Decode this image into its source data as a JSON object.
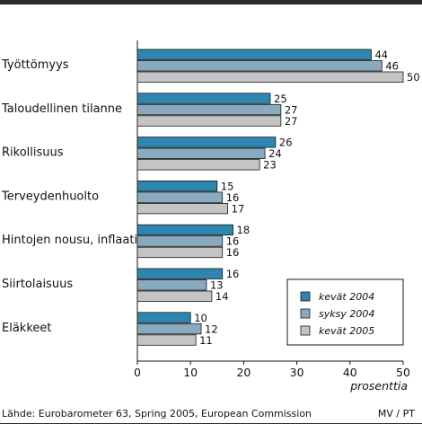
{
  "chart_data": {
    "type": "bar",
    "orientation": "horizontal",
    "categories": [
      "Työttömyys",
      "Taloudellinen tilanne",
      "Rikollisuus",
      "Terveydenhuolto",
      "Hintojen nousu, inflaatio",
      "Siirtolaisuus",
      "Eläkkeet"
    ],
    "series": [
      {
        "name": "kevät 2004",
        "values": [
          44,
          25,
          26,
          15,
          18,
          16,
          10
        ],
        "color": "#2e86b0"
      },
      {
        "name": "syksy 2004",
        "values": [
          46,
          27,
          24,
          16,
          16,
          13,
          12
        ],
        "color": "#8aaabf"
      },
      {
        "name": "kevät 2005",
        "values": [
          50,
          27,
          23,
          17,
          16,
          14,
          11
        ],
        "color": "#c4c4c4"
      }
    ],
    "xlabel": "prosenttia",
    "xlim": [
      0,
      50
    ],
    "xticks": [
      "0",
      "10",
      "20",
      "30",
      "40",
      "50"
    ],
    "legend": "bottom-right",
    "grid": false
  },
  "footer": {
    "source": "Lähde: Eurobarometer 63, Spring 2005, European Commission",
    "credit": "MV / PT"
  }
}
